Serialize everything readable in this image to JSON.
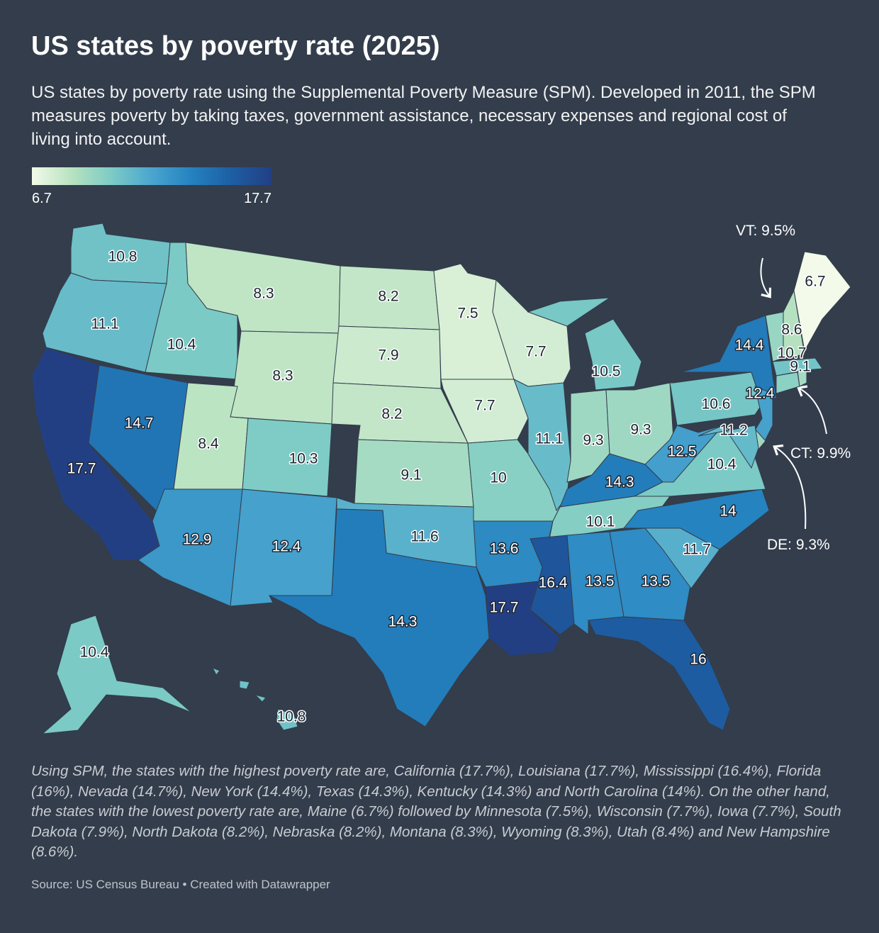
{
  "chart_data": {
    "type": "choropleth",
    "title": "US states by poverty rate (2025)",
    "subtitle": "US states by poverty rate using the Supplemental Poverty Measure (SPM). Developed in 2011, the SPM measures poverty by taking taxes, government assistance, necessary expenses and regional cost of living into account.",
    "legend": {
      "min": 6.7,
      "max": 17.7
    },
    "color_scale": [
      "#f3fae9",
      "#b7e2c0",
      "#7ccbc5",
      "#4aa5cf",
      "#2482bf",
      "#1d5ea3",
      "#233f84"
    ],
    "values": [
      10.8,
      11.1,
      17.7,
      10.4,
      14.7,
      8.3,
      8.3,
      8.4,
      12.9,
      10.3,
      12.4,
      8.2,
      7.9,
      8.2,
      9.1,
      11.6,
      14.3,
      7.5,
      7.7,
      10,
      13.6,
      17.7,
      7.7,
      11.1,
      10.5,
      9.3,
      9.3,
      14.3,
      10.1,
      16.4,
      13.5,
      13.5,
      16,
      11.7,
      14,
      10.4,
      12.5,
      10.6,
      14.4,
      12.4,
      9.3,
      11.2,
      9.9,
      9.1,
      10.7,
      9.5,
      8.6,
      6.7,
      10.4,
      10.8
    ],
    "annotations": [
      "VT: 9.5%",
      "CT: 9.9%",
      "DE: 9.3%"
    ],
    "note": "Using SPM, the states with the highest poverty rate are, California (17.7%), Louisiana (17.7%), Mississippi (16.4%), Florida (16%), Nevada (14.7%), New York (14.4%), Texas (14.3%), Kentucky (14.3%) and North Carolina (14%). On the other hand, the states with the lowest poverty rate are, Maine (6.7%) followed by Minnesota (7.5%), Wisconsin (7.7%), Iowa (7.7%), South Dakota (7.9%), North Dakota (8.2%), Nebraska (8.2%), Montana (8.3%), Wyoming (8.3%), Utah (8.4%) and New Hampshire (8.6%).",
    "source": "Source: US Census Bureau • Created with Datawrapper"
  }
}
